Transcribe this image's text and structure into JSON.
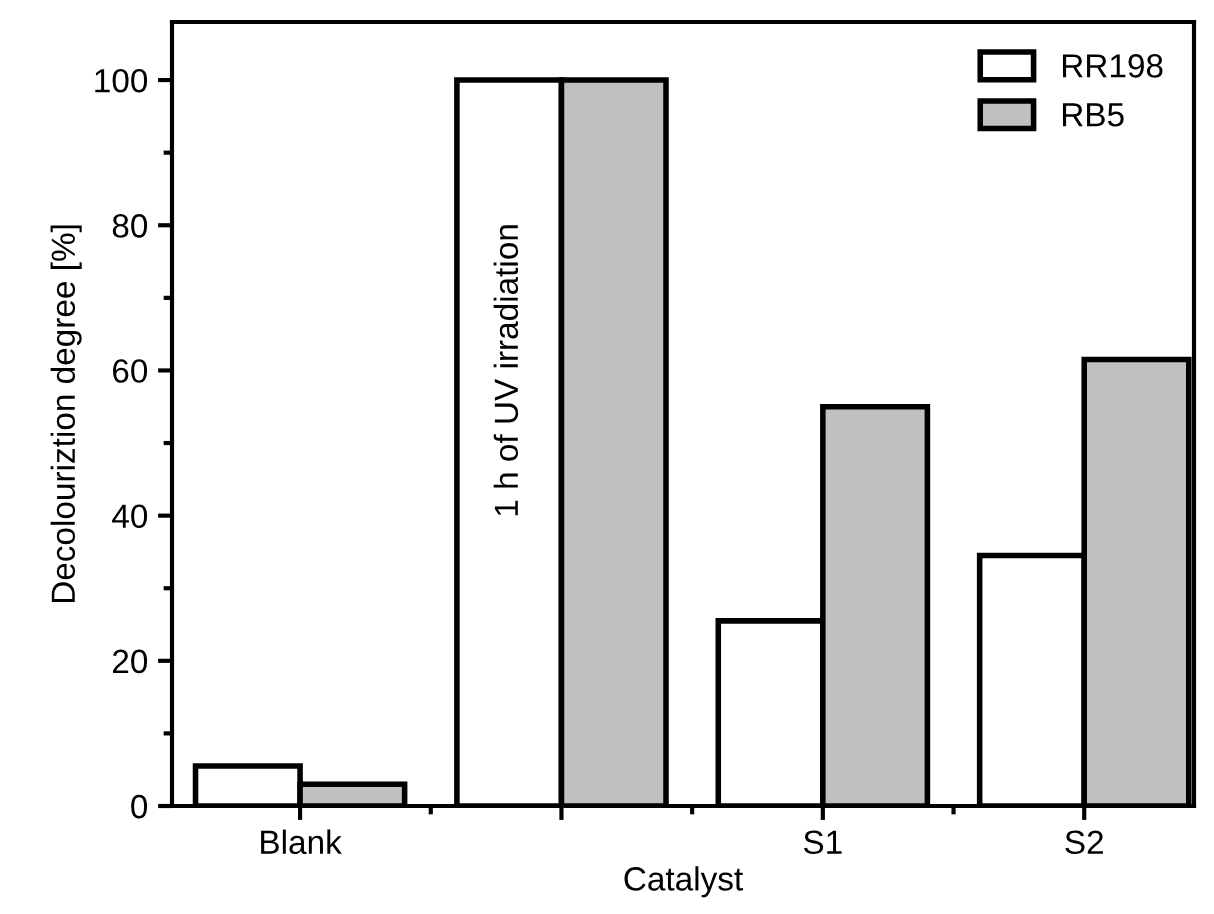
{
  "chart_data": {
    "type": "bar",
    "xlabel": "Catalyst",
    "ylabel": "Decolouriztion degree [%]",
    "categories": [
      "Blank",
      null,
      "S1",
      "S2"
    ],
    "series": [
      {
        "name": "RR198",
        "color": "#ffffff",
        "values": [
          5.5,
          100,
          25.5,
          34.5
        ]
      },
      {
        "name": "RB5",
        "color": "#c0c0c0",
        "values": [
          3,
          100,
          55,
          61.5
        ]
      }
    ],
    "ylim": [
      0,
      108
    ],
    "yticks": [
      0,
      20,
      40,
      60,
      80,
      100
    ],
    "grid": false,
    "legend": "top right",
    "annotations": [
      "1 h of UV irradiation"
    ]
  }
}
